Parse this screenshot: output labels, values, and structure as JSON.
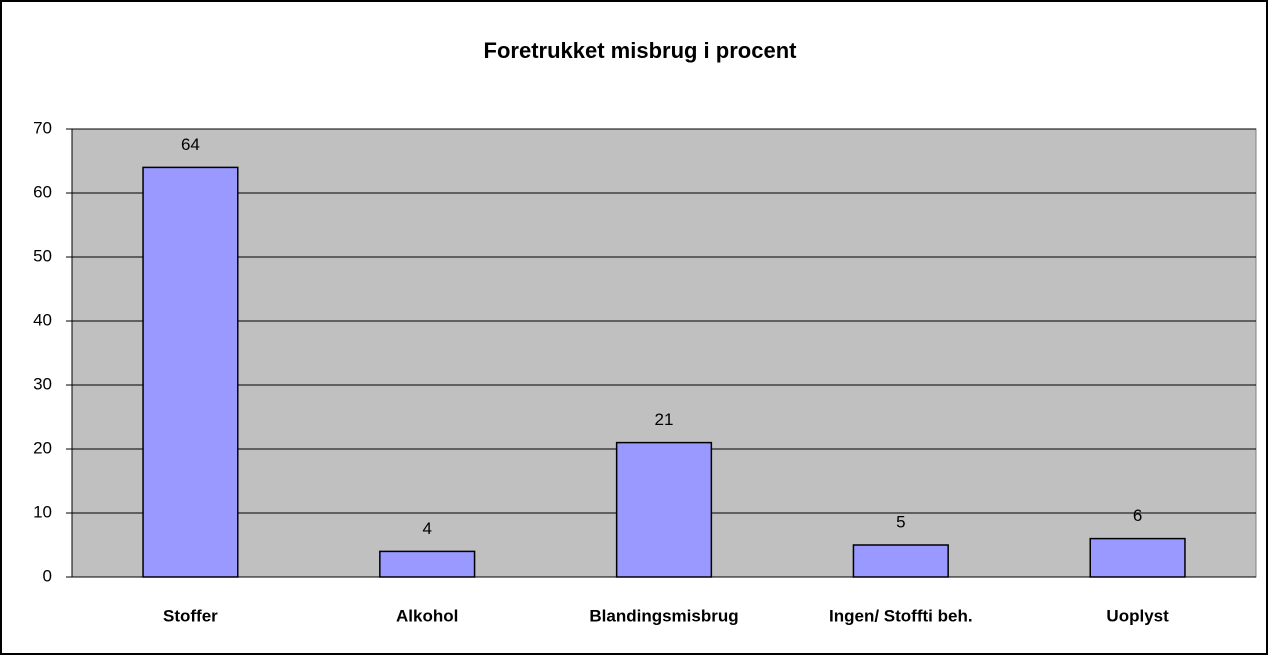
{
  "chart_data": {
    "type": "bar",
    "title": "Foretrukket misbrug i procent",
    "categories": [
      "Stoffer",
      "Alkohol",
      "Blandingsmisbrug",
      "Ingen/ Stoffti beh.",
      "Uoplyst"
    ],
    "values": [
      64,
      4,
      21,
      5,
      6
    ],
    "color": "#9999ff",
    "ylim": [
      0,
      70
    ],
    "yticks": [
      0,
      10,
      20,
      30,
      40,
      50,
      60,
      70
    ],
    "grid": true
  }
}
